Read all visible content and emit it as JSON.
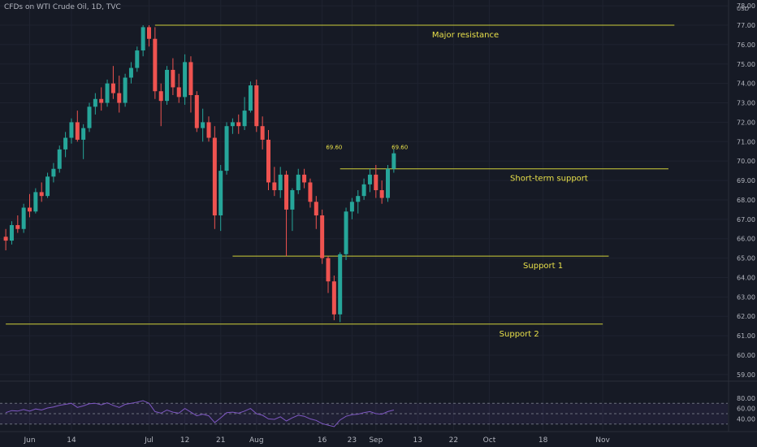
{
  "chart_data": {
    "type": "candlestick",
    "title": "CFDs on WTI Crude Oil, 1D, TVC",
    "currency": "USD",
    "ylim": [
      58.7,
      78.3
    ],
    "y_ticks": [
      59,
      60,
      61,
      62,
      63,
      64,
      65,
      66,
      67,
      68,
      69,
      70,
      71,
      72,
      73,
      74,
      75,
      76,
      77,
      78
    ],
    "x_ticks": [
      {
        "label": "Jun",
        "bar": 4
      },
      {
        "label": "14",
        "bar": 11
      },
      {
        "label": "Jul",
        "bar": 24
      },
      {
        "label": "12",
        "bar": 30
      },
      {
        "label": "21",
        "bar": 36
      },
      {
        "label": "Aug",
        "bar": 42
      },
      {
        "label": "16",
        "bar": 53
      },
      {
        "label": "23",
        "bar": 58
      },
      {
        "label": "Sep",
        "bar": 62
      },
      {
        "label": "13",
        "bar": 69
      },
      {
        "label": "22",
        "bar": 75
      },
      {
        "label": "Oct",
        "bar": 81
      },
      {
        "label": "18",
        "bar": 90
      },
      {
        "label": "Nov",
        "bar": 100
      }
    ],
    "candles": [
      [
        66.1,
        66.5,
        65.4,
        65.9
      ],
      [
        65.9,
        66.9,
        65.7,
        66.7
      ],
      [
        66.7,
        67.2,
        66.3,
        66.5
      ],
      [
        66.5,
        67.8,
        66.3,
        67.6
      ],
      [
        67.6,
        68.3,
        67.1,
        67.4
      ],
      [
        67.4,
        68.6,
        67.3,
        68.4
      ],
      [
        68.4,
        68.9,
        67.9,
        68.2
      ],
      [
        68.2,
        69.4,
        68.1,
        69.2
      ],
      [
        69.2,
        69.9,
        68.9,
        69.6
      ],
      [
        69.6,
        70.8,
        69.4,
        70.6
      ],
      [
        70.6,
        71.5,
        70.2,
        71.2
      ],
      [
        71.2,
        72.2,
        70.9,
        72.0
      ],
      [
        72.0,
        72.6,
        71.0,
        71.1
      ],
      [
        71.1,
        71.9,
        70.1,
        71.7
      ],
      [
        71.7,
        73.0,
        71.5,
        72.8
      ],
      [
        72.8,
        73.5,
        72.4,
        73.2
      ],
      [
        73.2,
        73.8,
        72.6,
        73.0
      ],
      [
        73.0,
        74.2,
        72.8,
        74.0
      ],
      [
        74.0,
        74.9,
        73.2,
        73.5
      ],
      [
        73.5,
        74.4,
        72.5,
        73.0
      ],
      [
        73.0,
        74.5,
        72.8,
        74.3
      ],
      [
        74.3,
        75.1,
        74.0,
        74.8
      ],
      [
        74.8,
        75.9,
        74.6,
        75.7
      ],
      [
        75.7,
        77.0,
        75.4,
        76.9
      ],
      [
        76.9,
        77.0,
        75.9,
        76.3
      ],
      [
        76.3,
        76.9,
        73.2,
        73.6
      ],
      [
        73.6,
        74.0,
        71.8,
        73.1
      ],
      [
        73.1,
        74.9,
        72.9,
        74.7
      ],
      [
        74.7,
        75.3,
        73.4,
        73.8
      ],
      [
        73.8,
        74.5,
        73.0,
        73.3
      ],
      [
        73.3,
        75.5,
        72.9,
        75.1
      ],
      [
        75.1,
        75.4,
        72.5,
        73.4
      ],
      [
        73.4,
        73.6,
        71.5,
        71.7
      ],
      [
        71.7,
        72.7,
        71.0,
        72.0
      ],
      [
        72.0,
        72.3,
        71.0,
        71.2
      ],
      [
        71.2,
        71.8,
        66.5,
        67.2
      ],
      [
        67.2,
        69.8,
        66.4,
        69.5
      ],
      [
        69.5,
        72.0,
        69.3,
        71.8
      ],
      [
        71.8,
        72.2,
        71.4,
        72.0
      ],
      [
        72.0,
        72.4,
        71.4,
        71.8
      ],
      [
        71.8,
        73.3,
        71.6,
        72.6
      ],
      [
        72.6,
        74.1,
        72.5,
        73.9
      ],
      [
        73.9,
        74.2,
        71.5,
        71.8
      ],
      [
        71.8,
        72.3,
        70.6,
        71.1
      ],
      [
        71.1,
        71.6,
        68.5,
        68.9
      ],
      [
        68.9,
        69.7,
        68.2,
        68.5
      ],
      [
        68.5,
        69.7,
        68.1,
        69.3
      ],
      [
        69.3,
        69.5,
        65.1,
        67.5
      ],
      [
        67.5,
        68.6,
        66.4,
        68.5
      ],
      [
        68.5,
        69.6,
        68.3,
        69.3
      ],
      [
        69.3,
        69.6,
        68.6,
        68.9
      ],
      [
        68.9,
        69.1,
        67.6,
        67.9
      ],
      [
        67.9,
        68.2,
        66.5,
        67.2
      ],
      [
        67.2,
        67.5,
        64.7,
        65.0
      ],
      [
        65.0,
        65.1,
        63.2,
        63.8
      ],
      [
        63.8,
        64.1,
        61.8,
        62.1
      ],
      [
        62.1,
        65.3,
        61.7,
        65.2
      ],
      [
        65.2,
        67.6,
        64.9,
        67.4
      ],
      [
        67.4,
        68.1,
        67.0,
        67.9
      ],
      [
        67.9,
        68.5,
        67.3,
        68.2
      ],
      [
        68.2,
        69.1,
        68.0,
        68.8
      ],
      [
        68.8,
        69.6,
        68.4,
        69.3
      ],
      [
        69.3,
        69.8,
        68.1,
        68.5
      ],
      [
        68.5,
        69.0,
        67.8,
        68.1
      ],
      [
        68.1,
        69.8,
        67.9,
        69.6
      ],
      [
        69.6,
        70.6,
        69.4,
        70.4
      ]
    ],
    "levels": [
      {
        "name": "Major resistance",
        "price": 77.0,
        "from_bar": 25,
        "to_bar": 112,
        "label_bar": 77
      },
      {
        "name": "Short-term support",
        "price": 69.6,
        "from_bar": 56,
        "to_bar": 111,
        "label_bar": 91
      },
      {
        "name": "Support 1",
        "price": 65.1,
        "from_bar": 38,
        "to_bar": 101,
        "label_bar": 90
      },
      {
        "name": "Support 2",
        "price": 61.6,
        "from_bar": 0,
        "to_bar": 100,
        "label_bar": 86
      }
    ],
    "annotations": [
      {
        "text": "69.60",
        "bar": 55,
        "price": 70.2
      },
      {
        "text": "69.60",
        "bar": 66,
        "price": 70.2
      }
    ],
    "rsi": {
      "ticks": [
        40,
        60,
        80
      ],
      "upper_band": 70,
      "lower_band": 30,
      "values": [
        52,
        56,
        55,
        58,
        55,
        59,
        57,
        61,
        63,
        66,
        68,
        70,
        62,
        65,
        69,
        70,
        67,
        71,
        66,
        62,
        68,
        70,
        72,
        75,
        70,
        54,
        51,
        57,
        53,
        51,
        60,
        53,
        46,
        49,
        46,
        33,
        42,
        52,
        53,
        51,
        55,
        60,
        50,
        47,
        40,
        39,
        44,
        36,
        42,
        47,
        45,
        40,
        37,
        31,
        28,
        25,
        38,
        45,
        48,
        49,
        52,
        54,
        50,
        49,
        54,
        57
      ]
    }
  }
}
